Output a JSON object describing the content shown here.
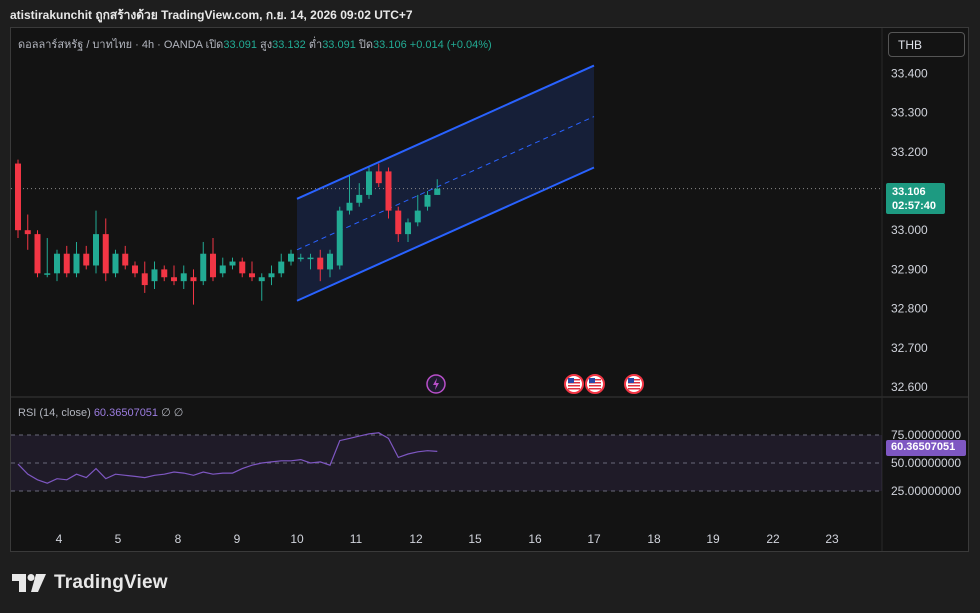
{
  "header": {
    "text": "atistirakunchit ถูกสร้างด้วย TradingView.com, ก.ย. 14, 2026 09:02 UTC+7"
  },
  "legend": {
    "symbol": "ดอลลาร์สหรัฐ / บาทไทย · 4h · OANDA",
    "open_label": "เปิด",
    "open": "33.091",
    "high_label": "สูง",
    "high": "33.132",
    "low_label": "ต่ำ",
    "low": "33.091",
    "close_label": "ปิด",
    "close": "33.106",
    "change": "+0.014 (+0.04%)"
  },
  "currency_button": "THB",
  "price_tag": {
    "price": "33.106",
    "countdown": "02:57:40"
  },
  "rsi": {
    "label": "RSI (14, close)",
    "value": "60.36507051",
    "extra1": "∅",
    "extra2": "∅",
    "levels": [
      "75.00000000",
      "50.00000000",
      "25.00000000"
    ]
  },
  "brand": {
    "name": "TradingView"
  },
  "colors": {
    "up": "#22ab94",
    "down": "#f23645",
    "channel": "#2962ff",
    "rsi": "#7e57c2",
    "background": "#131313"
  },
  "chart_data": {
    "type": "candlestick",
    "timeframe": "4h",
    "y_ticks": [
      "33.400",
      "33.300",
      "33.200",
      "33.100",
      "33.000",
      "32.900",
      "32.800",
      "32.700",
      "32.600"
    ],
    "x_ticks": [
      "4",
      "5",
      "8",
      "9",
      "10",
      "11",
      "12",
      "15",
      "16",
      "17",
      "18",
      "19",
      "22",
      "23"
    ],
    "ylim": [
      32.58,
      33.43
    ],
    "current_price": 33.106,
    "candles": [
      {
        "o": 33.17,
        "h": 33.18,
        "l": 32.98,
        "c": 33.0
      },
      {
        "o": 33.0,
        "h": 33.04,
        "l": 32.95,
        "c": 32.99
      },
      {
        "o": 32.99,
        "h": 33.0,
        "l": 32.88,
        "c": 32.89
      },
      {
        "o": 32.89,
        "h": 32.98,
        "l": 32.88,
        "c": 32.89
      },
      {
        "o": 32.89,
        "h": 32.95,
        "l": 32.87,
        "c": 32.94
      },
      {
        "o": 32.94,
        "h": 32.96,
        "l": 32.88,
        "c": 32.89
      },
      {
        "o": 32.89,
        "h": 32.97,
        "l": 32.88,
        "c": 32.94
      },
      {
        "o": 32.94,
        "h": 32.96,
        "l": 32.9,
        "c": 32.91
      },
      {
        "o": 32.91,
        "h": 33.05,
        "l": 32.89,
        "c": 32.99
      },
      {
        "o": 32.99,
        "h": 33.03,
        "l": 32.87,
        "c": 32.89
      },
      {
        "o": 32.89,
        "h": 32.95,
        "l": 32.88,
        "c": 32.94
      },
      {
        "o": 32.94,
        "h": 32.96,
        "l": 32.9,
        "c": 32.91
      },
      {
        "o": 32.91,
        "h": 32.92,
        "l": 32.88,
        "c": 32.89
      },
      {
        "o": 32.89,
        "h": 32.92,
        "l": 32.84,
        "c": 32.86
      },
      {
        "o": 32.87,
        "h": 32.92,
        "l": 32.85,
        "c": 32.9
      },
      {
        "o": 32.9,
        "h": 32.91,
        "l": 32.87,
        "c": 32.88
      },
      {
        "o": 32.88,
        "h": 32.91,
        "l": 32.86,
        "c": 32.87
      },
      {
        "o": 32.87,
        "h": 32.91,
        "l": 32.85,
        "c": 32.89
      },
      {
        "o": 32.88,
        "h": 32.9,
        "l": 32.81,
        "c": 32.87
      },
      {
        "o": 32.87,
        "h": 32.97,
        "l": 32.86,
        "c": 32.94
      },
      {
        "o": 32.94,
        "h": 32.98,
        "l": 32.87,
        "c": 32.88
      },
      {
        "o": 32.89,
        "h": 32.93,
        "l": 32.88,
        "c": 32.91
      },
      {
        "o": 32.91,
        "h": 32.93,
        "l": 32.9,
        "c": 32.92
      },
      {
        "o": 32.92,
        "h": 32.93,
        "l": 32.88,
        "c": 32.89
      },
      {
        "o": 32.89,
        "h": 32.92,
        "l": 32.87,
        "c": 32.88
      },
      {
        "o": 32.87,
        "h": 32.89,
        "l": 32.82,
        "c": 32.88
      },
      {
        "o": 32.88,
        "h": 32.91,
        "l": 32.86,
        "c": 32.89
      },
      {
        "o": 32.89,
        "h": 32.94,
        "l": 32.88,
        "c": 32.92
      },
      {
        "o": 32.92,
        "h": 32.95,
        "l": 32.91,
        "c": 32.94
      },
      {
        "o": 32.93,
        "h": 32.94,
        "l": 32.92,
        "c": 32.93
      },
      {
        "o": 32.93,
        "h": 32.94,
        "l": 32.9,
        "c": 32.93
      },
      {
        "o": 32.93,
        "h": 32.95,
        "l": 32.87,
        "c": 32.9
      },
      {
        "o": 32.9,
        "h": 32.95,
        "l": 32.88,
        "c": 32.94
      },
      {
        "o": 32.91,
        "h": 33.06,
        "l": 32.9,
        "c": 33.05
      },
      {
        "o": 33.05,
        "h": 33.14,
        "l": 33.04,
        "c": 33.07
      },
      {
        "o": 33.07,
        "h": 33.12,
        "l": 33.06,
        "c": 33.09
      },
      {
        "o": 33.09,
        "h": 33.16,
        "l": 33.08,
        "c": 33.15
      },
      {
        "o": 33.15,
        "h": 33.17,
        "l": 33.11,
        "c": 33.12
      },
      {
        "o": 33.15,
        "h": 33.16,
        "l": 33.03,
        "c": 33.05
      },
      {
        "o": 33.05,
        "h": 33.06,
        "l": 32.97,
        "c": 32.99
      },
      {
        "o": 32.99,
        "h": 33.03,
        "l": 32.97,
        "c": 33.02
      },
      {
        "o": 33.02,
        "h": 33.09,
        "l": 33.01,
        "c": 33.05
      },
      {
        "o": 33.06,
        "h": 33.1,
        "l": 33.05,
        "c": 33.09
      },
      {
        "o": 33.09,
        "h": 33.13,
        "l": 33.09,
        "c": 33.106
      }
    ],
    "rsi_series": [
      49,
      40,
      35,
      32,
      36,
      35,
      40,
      37,
      45,
      36,
      40,
      39,
      38,
      37,
      39,
      40,
      42,
      41,
      39,
      42,
      40,
      41,
      41,
      45,
      48,
      50,
      51,
      52,
      52,
      53,
      50,
      51,
      48,
      70,
      72,
      74,
      76,
      77,
      72,
      55,
      58,
      60,
      61,
      60.37
    ],
    "rsi_levels": [
      75,
      50,
      25
    ],
    "channel": {
      "start": {
        "date": "10",
        "lower": 32.82,
        "upper": 33.08
      },
      "end": {
        "date": "17",
        "lower": 33.16,
        "upper": 33.42
      }
    },
    "event_markers": [
      {
        "date": "12",
        "icon": "lightning-icon"
      },
      {
        "date": "16",
        "icon": "us-flag-icon"
      },
      {
        "date": "16",
        "icon": "us-flag-icon"
      },
      {
        "date": "17",
        "icon": "us-flag-icon"
      }
    ],
    "legend_placement": "top-left",
    "grid": false
  }
}
